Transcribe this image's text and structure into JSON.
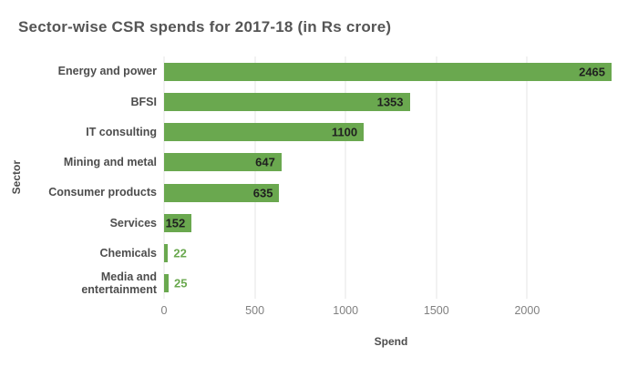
{
  "title": "Sector-wise CSR spends for 2017-18 (in Rs crore)",
  "colors": {
    "bar": "#6aa84f",
    "value_inside": "#1f1f1f",
    "value_outside": "#6aa84f",
    "title_text": "#555555",
    "axis_text": "#808080",
    "category_text": "#4d4d4d",
    "gridline": "#e4e4e4",
    "background": "#ffffff"
  },
  "chart_data": {
    "type": "bar",
    "orientation": "horizontal",
    "title": "Sector-wise CSR spends for 2017-18 (in Rs crore)",
    "categories": [
      "Energy and power",
      "BFSI",
      "IT consulting",
      "Mining and metal",
      "Consumer products",
      "Services",
      "Chemicals",
      "Media and entertainment"
    ],
    "values": [
      2465,
      1353,
      1100,
      647,
      635,
      152,
      22,
      25
    ],
    "xlabel": "Spend",
    "ylabel": "Sector",
    "xlim": [
      0,
      2500
    ],
    "xticks": [
      0,
      500,
      1000,
      1500,
      2000
    ],
    "grid": true,
    "legend": "none",
    "value_labels": true
  }
}
